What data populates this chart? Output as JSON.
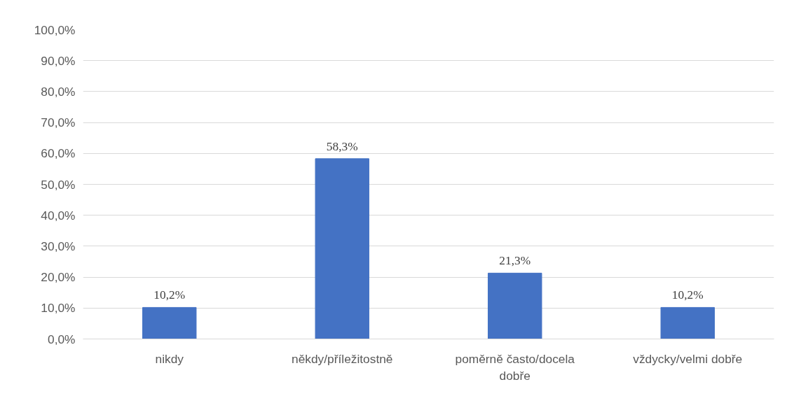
{
  "chart_data": {
    "type": "bar",
    "categories": [
      "nikdy",
      "někdy/příležitostně",
      "poměrně často/docela dobře",
      "vždycky/velmi dobře"
    ],
    "values": [
      10.2,
      58.3,
      21.3,
      10.2
    ],
    "value_labels": [
      "10,2%",
      "58,3%",
      "21,3%",
      "10,2%"
    ],
    "color": "#4472c4",
    "ylim": [
      0,
      100
    ],
    "yticks": [
      {
        "value": 0,
        "label": "0,0%"
      },
      {
        "value": 10,
        "label": "10,0%"
      },
      {
        "value": 20,
        "label": "20,0%"
      },
      {
        "value": 30,
        "label": "30,0%"
      },
      {
        "value": 40,
        "label": "40,0%"
      },
      {
        "value": 50,
        "label": "50,0%"
      },
      {
        "value": 60,
        "label": "60,0%"
      },
      {
        "value": 70,
        "label": "70,0%"
      },
      {
        "value": 80,
        "label": "80,0%"
      },
      {
        "value": 90,
        "label": "90,0%"
      },
      {
        "value": 100,
        "label": "100,0%"
      }
    ],
    "grid": "y"
  }
}
